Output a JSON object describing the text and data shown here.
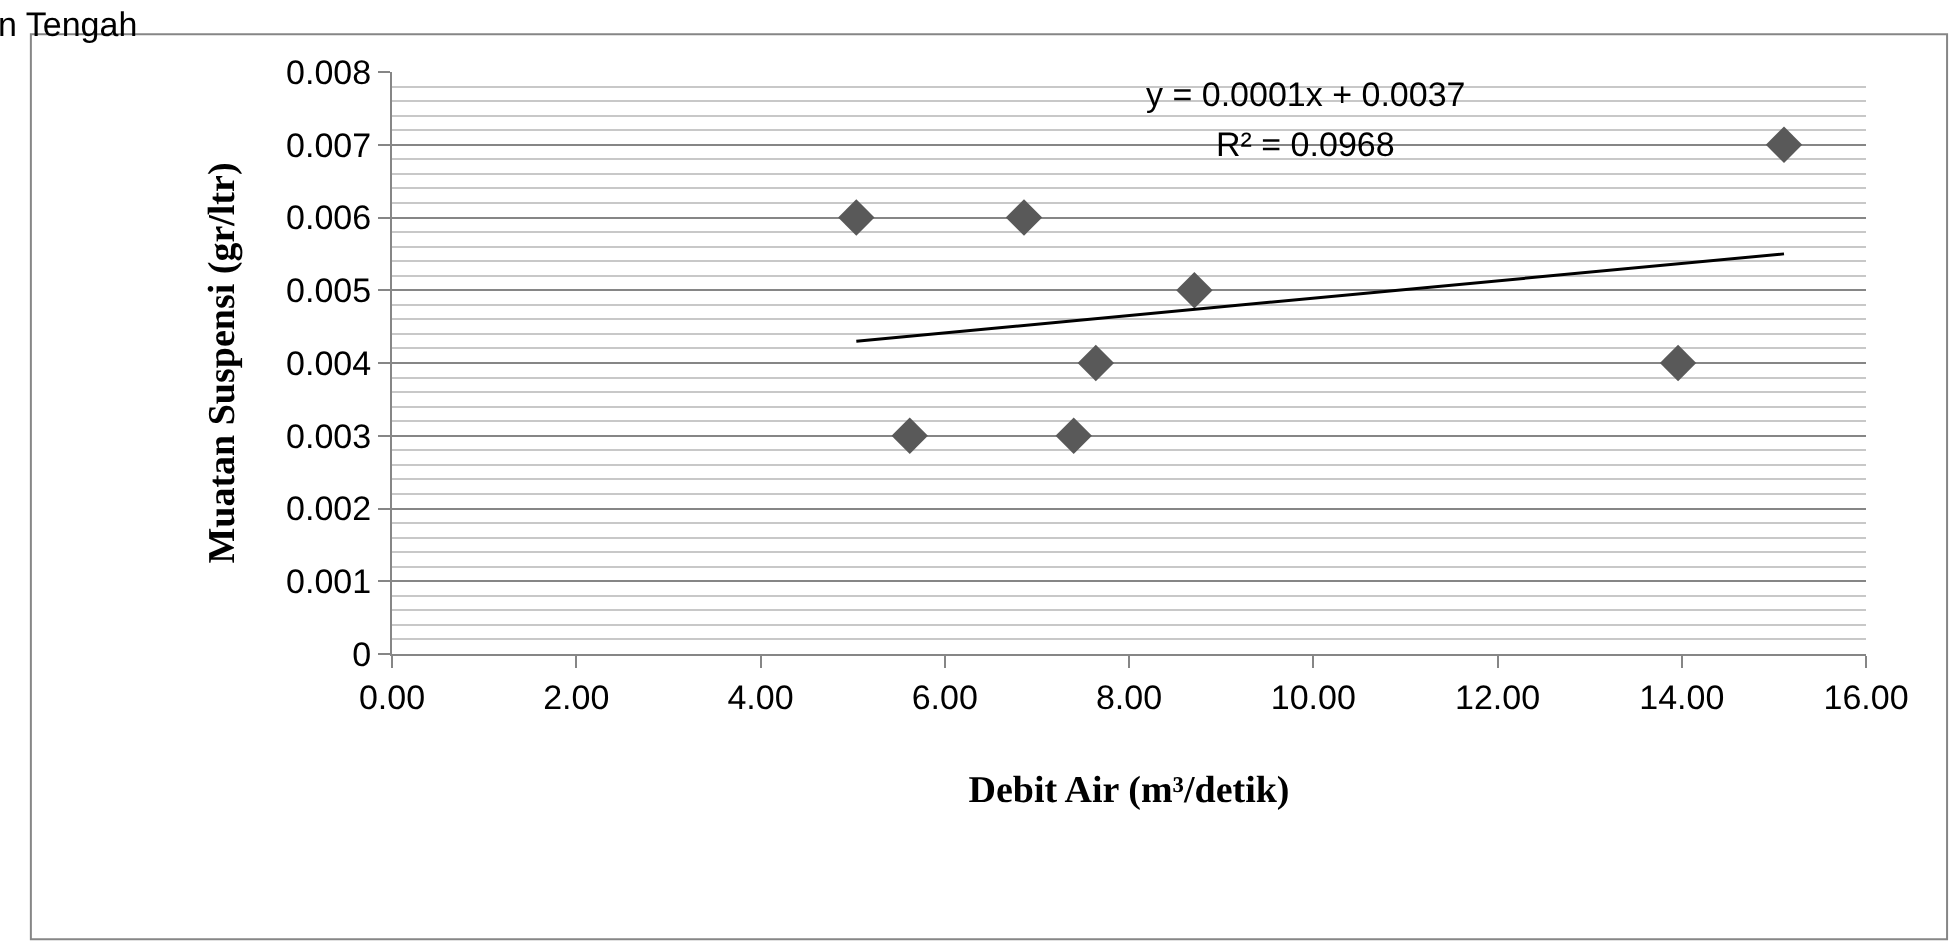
{
  "chart_data": {
    "type": "scatter",
    "xlabel": "Debit Air (m³/detik)",
    "ylabel": "Muatan Suspensi (gr/ltr)",
    "annotations": [
      "n Tengah",
      "y = 0.0001x + 0.0037",
      "R² = 0.0968"
    ],
    "series": [
      {
        "color": "#595959",
        "marker": "diamond",
        "x": [
          5.04,
          5.62,
          6.86,
          7.4,
          7.64,
          8.71,
          13.96,
          15.11
        ],
        "values": [
          0.006,
          0.003,
          0.006,
          0.003,
          0.004,
          0.005,
          0.004,
          0.007
        ]
      },
      {
        "type": "line",
        "color": "#000000",
        "marker": "none",
        "line_style": "solid",
        "x": [
          5.04,
          15.11
        ],
        "values": [
          0.0043,
          0.0055
        ]
      }
    ],
    "xlim": [
      0,
      16
    ],
    "xticks": [
      {
        "value": 0,
        "label": "0.00"
      },
      {
        "value": 2,
        "label": "2.00"
      },
      {
        "value": 4,
        "label": "4.00"
      },
      {
        "value": 6,
        "label": "6.00"
      },
      {
        "value": 8,
        "label": "8.00"
      },
      {
        "value": 10,
        "label": "10.00"
      },
      {
        "value": 12,
        "label": "12.00"
      },
      {
        "value": 14,
        "label": "14.00"
      },
      {
        "value": 16,
        "label": "16.00"
      }
    ],
    "ylim": [
      0,
      0.008
    ],
    "yticks": [
      0,
      0.001,
      0.002,
      0.003,
      0.004,
      0.005,
      0.006,
      0.007,
      0.008
    ],
    "grid": "y"
  }
}
